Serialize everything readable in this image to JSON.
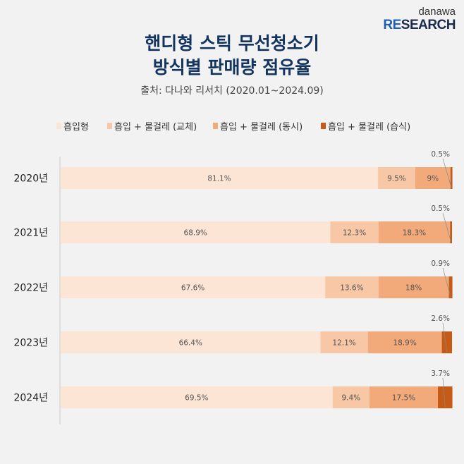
{
  "logo": {
    "line1": "danawa",
    "line2a": "RE",
    "line2b": "SEARCH"
  },
  "title": [
    "핸디형 스틱 무선청소기",
    "방식별 판매량 점유율"
  ],
  "source": "출처: 다나와 리서치 (2020.01~2024.09)",
  "chart_data": {
    "type": "bar",
    "stacked": true,
    "orientation": "horizontal",
    "title": "핸디형 스틱 무선청소기 방식별 판매량 점유율",
    "categories": [
      "2020년",
      "2021년",
      "2022년",
      "2023년",
      "2024년"
    ],
    "series": [
      {
        "name": "흡입형",
        "color": "#fde5d6",
        "values": [
          81.1,
          68.9,
          67.6,
          66.4,
          69.5
        ]
      },
      {
        "name": "흡입 + 물걸레 (교체)",
        "color": "#f8c7a6",
        "values": [
          9.5,
          12.3,
          13.6,
          12.1,
          9.4
        ]
      },
      {
        "name": "흡입 + 물걸레 (동시)",
        "color": "#f2aa7b",
        "values": [
          9,
          18.3,
          18,
          18.9,
          17.5
        ]
      },
      {
        "name": "흡입 + 물걸레 (습식)",
        "color": "#c65b17",
        "values": [
          0.5,
          0.5,
          0.9,
          2.6,
          3.7
        ]
      }
    ],
    "labels": [
      [
        "81.1%",
        "9.5%",
        "9%",
        "0.5%"
      ],
      [
        "68.9%",
        "12.3%",
        "18.3%",
        "0.5%"
      ],
      [
        "67.6%",
        "13.6%",
        "18%",
        "0.9%"
      ],
      [
        "66.4%",
        "12.1%",
        "18.9%",
        "2.6%"
      ],
      [
        "69.5%",
        "9.4%",
        "17.5%",
        "3.7%"
      ]
    ],
    "xlim": [
      0,
      100
    ],
    "legend": "top"
  }
}
